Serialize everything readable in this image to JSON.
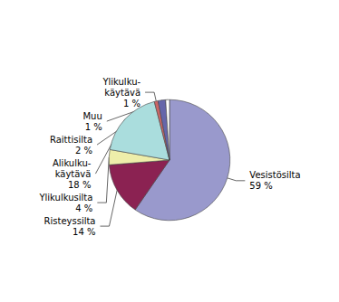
{
  "chart_data": {
    "type": "pie",
    "categories": [
      "Vesistösilta",
      "Risteyssilta",
      "Ylikulkusilta",
      "Alikulku-\nkäytävä",
      "Ylikulku-\nkäytävä",
      "Raittisilta",
      "Muu"
    ],
    "values": [
      59,
      14,
      4,
      18,
      1,
      2,
      1
    ],
    "value_labels": [
      "59 %",
      "14 %",
      "4 %",
      "18 %",
      "1 %",
      "2 %",
      "1 %"
    ],
    "colors": [
      "#9999CC",
      "#8B2252",
      "#EEEEAA",
      "#AADDDD",
      "#CC6666",
      "#6666AA",
      "#ffffff"
    ],
    "data_labels": true
  }
}
